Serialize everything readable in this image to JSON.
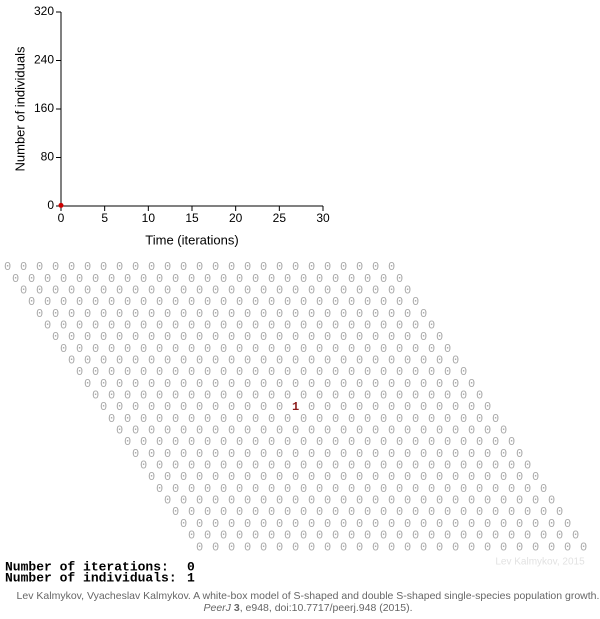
{
  "chart_data": {
    "type": "line",
    "x_label": "Time (iterations)",
    "y_label": "Number of individuals",
    "x": [
      0
    ],
    "values": [
      1
    ],
    "color": "#cc0000",
    "xlim": [
      0,
      30
    ],
    "xticks": [
      0,
      5,
      10,
      15,
      20,
      25,
      30
    ],
    "ylim": [
      0,
      320
    ],
    "yticks": [
      0,
      80,
      160,
      240,
      320
    ]
  },
  "lattice": {
    "rows": [
      [
        0,
        0,
        0,
        0,
        0,
        0,
        0,
        0,
        0,
        0,
        0,
        0,
        0,
        0,
        0,
        0,
        0,
        0,
        0,
        0,
        0,
        0,
        0,
        0,
        0
      ],
      [
        0,
        0,
        0,
        0,
        0,
        0,
        0,
        0,
        0,
        0,
        0,
        0,
        0,
        0,
        0,
        0,
        0,
        0,
        0,
        0,
        0,
        0,
        0,
        0,
        0
      ],
      [
        0,
        0,
        0,
        0,
        0,
        0,
        0,
        0,
        0,
        0,
        0,
        0,
        0,
        0,
        0,
        0,
        0,
        0,
        0,
        0,
        0,
        0,
        0,
        0,
        0
      ],
      [
        0,
        0,
        0,
        0,
        0,
        0,
        0,
        0,
        0,
        0,
        0,
        0,
        0,
        0,
        0,
        0,
        0,
        0,
        0,
        0,
        0,
        0,
        0,
        0,
        0
      ],
      [
        0,
        0,
        0,
        0,
        0,
        0,
        0,
        0,
        0,
        0,
        0,
        0,
        0,
        0,
        0,
        0,
        0,
        0,
        0,
        0,
        0,
        0,
        0,
        0,
        0
      ],
      [
        0,
        0,
        0,
        0,
        0,
        0,
        0,
        0,
        0,
        0,
        0,
        0,
        0,
        0,
        0,
        0,
        0,
        0,
        0,
        0,
        0,
        0,
        0,
        0,
        0
      ],
      [
        0,
        0,
        0,
        0,
        0,
        0,
        0,
        0,
        0,
        0,
        0,
        0,
        0,
        0,
        0,
        0,
        0,
        0,
        0,
        0,
        0,
        0,
        0,
        0,
        0
      ],
      [
        0,
        0,
        0,
        0,
        0,
        0,
        0,
        0,
        0,
        0,
        0,
        0,
        0,
        0,
        0,
        0,
        0,
        0,
        0,
        0,
        0,
        0,
        0,
        0,
        0
      ],
      [
        0,
        0,
        0,
        0,
        0,
        0,
        0,
        0,
        0,
        0,
        0,
        0,
        0,
        0,
        0,
        0,
        0,
        0,
        0,
        0,
        0,
        0,
        0,
        0,
        0
      ],
      [
        0,
        0,
        0,
        0,
        0,
        0,
        0,
        0,
        0,
        0,
        0,
        0,
        0,
        0,
        0,
        0,
        0,
        0,
        0,
        0,
        0,
        0,
        0,
        0,
        0
      ],
      [
        0,
        0,
        0,
        0,
        0,
        0,
        0,
        0,
        0,
        0,
        0,
        0,
        0,
        0,
        0,
        0,
        0,
        0,
        0,
        0,
        0,
        0,
        0,
        0,
        0
      ],
      [
        0,
        0,
        0,
        0,
        0,
        0,
        0,
        0,
        0,
        0,
        0,
        0,
        0,
        0,
        0,
        0,
        0,
        0,
        0,
        0,
        0,
        0,
        0,
        0,
        0
      ],
      [
        0,
        0,
        0,
        0,
        0,
        0,
        0,
        0,
        0,
        0,
        0,
        0,
        1,
        0,
        0,
        0,
        0,
        0,
        0,
        0,
        0,
        0,
        0,
        0,
        0
      ],
      [
        0,
        0,
        0,
        0,
        0,
        0,
        0,
        0,
        0,
        0,
        0,
        0,
        0,
        0,
        0,
        0,
        0,
        0,
        0,
        0,
        0,
        0,
        0,
        0,
        0
      ],
      [
        0,
        0,
        0,
        0,
        0,
        0,
        0,
        0,
        0,
        0,
        0,
        0,
        0,
        0,
        0,
        0,
        0,
        0,
        0,
        0,
        0,
        0,
        0,
        0,
        0
      ],
      [
        0,
        0,
        0,
        0,
        0,
        0,
        0,
        0,
        0,
        0,
        0,
        0,
        0,
        0,
        0,
        0,
        0,
        0,
        0,
        0,
        0,
        0,
        0,
        0,
        0
      ],
      [
        0,
        0,
        0,
        0,
        0,
        0,
        0,
        0,
        0,
        0,
        0,
        0,
        0,
        0,
        0,
        0,
        0,
        0,
        0,
        0,
        0,
        0,
        0,
        0,
        0
      ],
      [
        0,
        0,
        0,
        0,
        0,
        0,
        0,
        0,
        0,
        0,
        0,
        0,
        0,
        0,
        0,
        0,
        0,
        0,
        0,
        0,
        0,
        0,
        0,
        0,
        0
      ],
      [
        0,
        0,
        0,
        0,
        0,
        0,
        0,
        0,
        0,
        0,
        0,
        0,
        0,
        0,
        0,
        0,
        0,
        0,
        0,
        0,
        0,
        0,
        0,
        0,
        0
      ],
      [
        0,
        0,
        0,
        0,
        0,
        0,
        0,
        0,
        0,
        0,
        0,
        0,
        0,
        0,
        0,
        0,
        0,
        0,
        0,
        0,
        0,
        0,
        0,
        0,
        0
      ],
      [
        0,
        0,
        0,
        0,
        0,
        0,
        0,
        0,
        0,
        0,
        0,
        0,
        0,
        0,
        0,
        0,
        0,
        0,
        0,
        0,
        0,
        0,
        0,
        0,
        0
      ],
      [
        0,
        0,
        0,
        0,
        0,
        0,
        0,
        0,
        0,
        0,
        0,
        0,
        0,
        0,
        0,
        0,
        0,
        0,
        0,
        0,
        0,
        0,
        0,
        0,
        0
      ],
      [
        0,
        0,
        0,
        0,
        0,
        0,
        0,
        0,
        0,
        0,
        0,
        0,
        0,
        0,
        0,
        0,
        0,
        0,
        0,
        0,
        0,
        0,
        0,
        0,
        0
      ],
      [
        0,
        0,
        0,
        0,
        0,
        0,
        0,
        0,
        0,
        0,
        0,
        0,
        0,
        0,
        0,
        0,
        0,
        0,
        0,
        0,
        0,
        0,
        0,
        0,
        0
      ],
      [
        0,
        0,
        0,
        0,
        0,
        0,
        0,
        0,
        0,
        0,
        0,
        0,
        0,
        0,
        0,
        0,
        0,
        0,
        0,
        0,
        0,
        0,
        0,
        0,
        0
      ]
    ]
  },
  "stats": {
    "iterations_label": "Number of iterations:",
    "iterations": 0,
    "individuals_label": "Number of individuals:",
    "individuals": 1
  },
  "watermark": "Lev Kalmykov, 2015",
  "citation": {
    "authors_title": "Lev Kalmykov, Vyacheslav Kalmykov. A white-box model of S-shaped and double S-shaped single-species population growth.",
    "journal": "PeerJ",
    "volume": 3,
    "rest": ", e948, doi:10.7717/peerj.948 (2015)."
  }
}
